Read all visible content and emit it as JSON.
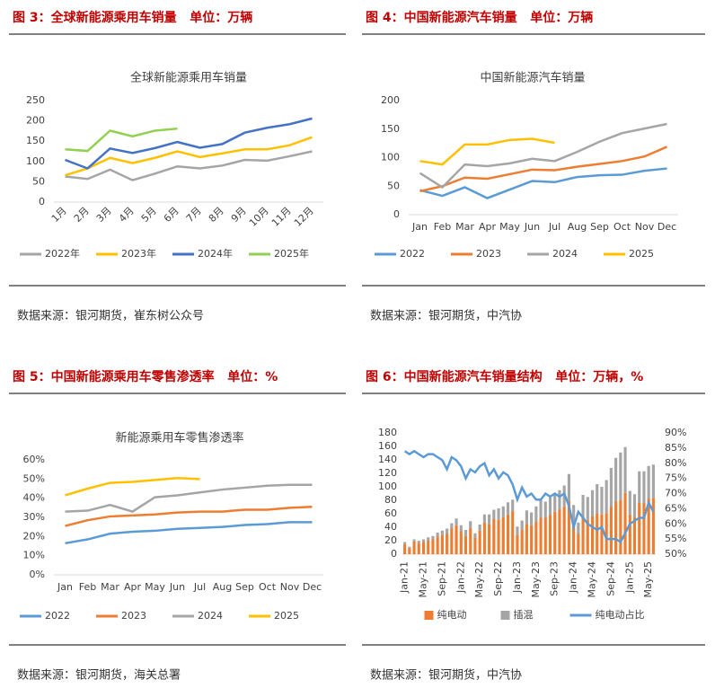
{
  "chart_data": [
    {
      "type": "line",
      "caption": "图 3：全球新能源乘用车销量   单位：万辆",
      "title": "全球新能源乘用车销量",
      "source": "数据来源：银河期货，崔东树公众号",
      "categories": [
        "1月",
        "2月",
        "3月",
        "4月",
        "5月",
        "6月",
        "7月",
        "8月",
        "9月",
        "10月",
        "11月",
        "12月"
      ],
      "ylim": [
        0,
        250
      ],
      "yticks": [
        0,
        50,
        100,
        150,
        200,
        250
      ],
      "grid": false,
      "series": [
        {
          "name": "2022年",
          "color": "#a5a5a5",
          "values": [
            63,
            57,
            80,
            54,
            70,
            88,
            83,
            90,
            104,
            102,
            113,
            125
          ]
        },
        {
          "name": "2023年",
          "color": "#ffc000",
          "values": [
            66,
            83,
            109,
            96,
            109,
            125,
            111,
            120,
            130,
            130,
            140,
            160
          ]
        },
        {
          "name": "2024年",
          "color": "#4472c4",
          "values": [
            104,
            83,
            132,
            121,
            133,
            148,
            134,
            143,
            171,
            183,
            192,
            206
          ]
        },
        {
          "name": "2025年",
          "color": "#92d050",
          "values": [
            130,
            126,
            176,
            162,
            176,
            181,
            null,
            null,
            null,
            null,
            null,
            null
          ]
        }
      ]
    },
    {
      "type": "line",
      "caption": "图 4：中国新能源汽车销量   单位：万辆",
      "title": "中国新能源汽车销量",
      "source": "数据来源：银河期货，中汽协",
      "categories": [
        "Jan",
        "Feb",
        "Mar",
        "Apr",
        "May",
        "Jun",
        "Jul",
        "Aug",
        "Sep",
        "Oct",
        "Nov",
        "Dec"
      ],
      "ylim": [
        0,
        200
      ],
      "yticks": [
        0,
        50,
        100,
        150,
        200
      ],
      "grid": false,
      "series": [
        {
          "name": "2022",
          "color": "#5b9bd5",
          "values": [
            43,
            33,
            48,
            29,
            44,
            59,
            57,
            66,
            69,
            70,
            77,
            81
          ]
        },
        {
          "name": "2023",
          "color": "#ed7d31",
          "values": [
            41,
            50,
            65,
            63,
            71,
            79,
            78,
            84,
            89,
            94,
            102,
            119
          ]
        },
        {
          "name": "2024",
          "color": "#a5a5a5",
          "values": [
            73,
            48,
            88,
            85,
            90,
            98,
            94,
            110,
            128,
            143,
            151,
            159
          ]
        },
        {
          "name": "2025",
          "color": "#ffc000",
          "values": [
            94,
            88,
            123,
            123,
            131,
            133,
            126,
            null,
            null,
            null,
            null,
            null
          ]
        }
      ]
    },
    {
      "type": "line",
      "caption": "图 5：中国新能源乘用车零售渗透率   单位：%",
      "title": "新能源乘用车零售渗透率",
      "source": "数据来源：银河期货，海关总署",
      "categories": [
        "Jan",
        "Feb",
        "Mar",
        "Apr",
        "May",
        "Jun",
        "Jul",
        "Aug",
        "Sep",
        "Oct",
        "Nov",
        "Dec"
      ],
      "ylim": [
        0,
        60
      ],
      "yticks": [
        {
          "value": 0,
          "label": "0%"
        },
        {
          "value": 10,
          "label": "10%"
        },
        {
          "value": 20,
          "label": "20%"
        },
        {
          "value": 30,
          "label": "30%"
        },
        {
          "value": 40,
          "label": "40%"
        },
        {
          "value": 50,
          "label": "50%"
        },
        {
          "value": 60,
          "label": "60%"
        }
      ],
      "grid": false,
      "series": [
        {
          "name": "2022",
          "color": "#5b9bd5",
          "values": [
            16.5,
            18.5,
            21.5,
            22.5,
            23,
            24,
            24.5,
            25,
            26,
            26.5,
            27.5,
            27.5
          ]
        },
        {
          "name": "2023",
          "color": "#ed7d31",
          "values": [
            25.5,
            28.5,
            30.5,
            31,
            31.5,
            32.5,
            33,
            33,
            34,
            34,
            35,
            35.5
          ]
        },
        {
          "name": "2024",
          "color": "#a5a5a5",
          "values": [
            33,
            33.5,
            36.5,
            33,
            40.5,
            41.5,
            43,
            44.5,
            45.5,
            46.5,
            47,
            47
          ]
        },
        {
          "name": "2025",
          "color": "#ffc000",
          "values": [
            41.5,
            45,
            48,
            48.5,
            49.5,
            50.5,
            50,
            null,
            null,
            null,
            null,
            null
          ]
        }
      ]
    },
    {
      "type": "combo",
      "caption": "图 6：中国新能源汽车销量结构   单位：万辆，%",
      "source": "数据来源：银河期货，中汽协",
      "categories": [
        "Jan-21",
        null,
        null,
        null,
        "May-21",
        null,
        null,
        null,
        "Sep-21",
        null,
        null,
        null,
        "Jan-22",
        null,
        null,
        null,
        "May-22",
        null,
        null,
        null,
        "Sep-22",
        null,
        null,
        null,
        "Jan-23",
        null,
        null,
        null,
        "May-23",
        null,
        null,
        null,
        "Sep-23",
        null,
        null,
        null,
        "Jan-24",
        null,
        null,
        null,
        "May-24",
        null,
        null,
        null,
        "Sep-24",
        null,
        null,
        null,
        "Jan-25",
        null,
        null,
        null,
        "May-25",
        null
      ],
      "ylim": [
        0,
        180
      ],
      "yticks": [
        0,
        20,
        40,
        60,
        80,
        100,
        120,
        140,
        160,
        180
      ],
      "y2lim": [
        50,
        90
      ],
      "y2ticks": [
        {
          "value": 50,
          "label": "50%"
        },
        {
          "value": 55,
          "label": "55%"
        },
        {
          "value": 60,
          "label": "60%"
        },
        {
          "value": 65,
          "label": "65%"
        },
        {
          "value": 70,
          "label": "70%"
        },
        {
          "value": 75,
          "label": "75%"
        },
        {
          "value": 80,
          "label": "80%"
        },
        {
          "value": 85,
          "label": "85%"
        },
        {
          "value": 90,
          "label": "90%"
        }
      ],
      "series": [
        {
          "name": "纯电动",
          "kind": "bar",
          "color": "#ed7d31",
          "values": [
            15,
            9,
            19,
            17,
            18,
            20,
            22,
            26,
            29,
            30,
            38,
            43,
            34,
            27,
            38,
            24,
            35,
            47,
            45,
            52,
            51,
            55,
            59,
            64,
            28,
            36,
            45,
            43,
            48,
            54,
            54,
            58,
            63,
            66,
            71,
            79,
            43,
            30,
            55,
            51,
            56,
            61,
            59,
            61,
            70,
            78,
            81,
            91,
            59,
            54,
            76,
            76,
            82,
            83
          ]
        },
        {
          "name": "插混",
          "kind": "bar",
          "color": "#a5a5a5",
          "values": [
            3,
            2,
            3,
            3,
            4,
            5,
            5,
            6,
            6,
            8,
            8,
            10,
            9,
            9,
            11,
            7,
            9,
            12,
            14,
            14,
            17,
            16,
            18,
            17,
            13,
            14,
            20,
            19,
            23,
            26,
            24,
            26,
            27,
            29,
            31,
            40,
            30,
            17,
            33,
            34,
            39,
            43,
            41,
            49,
            58,
            65,
            70,
            68,
            35,
            35,
            47,
            47,
            49,
            50
          ]
        },
        {
          "name": "纯电动占比",
          "kind": "line",
          "axis": "y2",
          "color": "#5b9bd5",
          "values": [
            84,
            83,
            84,
            83,
            82,
            83,
            83,
            82,
            81,
            78,
            82,
            81,
            79,
            75,
            78,
            77,
            79,
            80,
            76,
            78,
            75,
            77,
            76,
            73,
            68,
            72,
            69,
            70,
            68,
            68,
            70,
            69,
            70,
            69,
            70,
            66,
            59,
            64,
            62,
            60,
            59,
            58,
            59,
            55,
            55,
            55,
            54,
            57,
            60,
            61,
            62,
            62,
            67,
            64
          ]
        }
      ]
    }
  ]
}
